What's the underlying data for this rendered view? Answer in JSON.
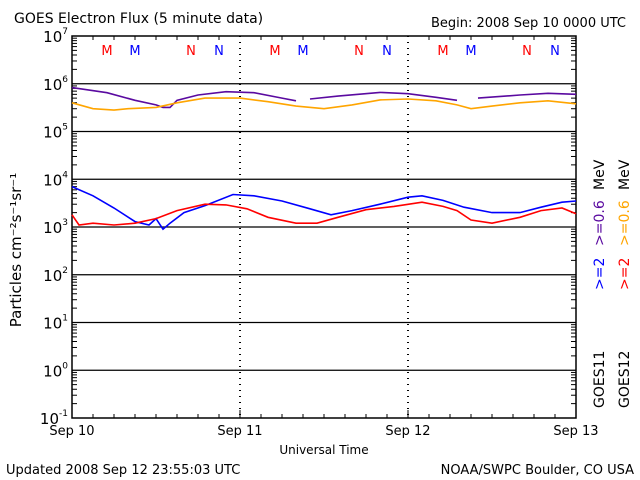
{
  "chart_data": {
    "type": "line",
    "title": "GOES Electron Flux (5 minute data)",
    "begin_label": "Begin: 2008 Sep 10 0000 UTC",
    "xlabel": "Universal Time",
    "ylabel": "Particles cm⁻²s⁻¹sr⁻¹",
    "x_unit": "hours since begin",
    "xlim": [
      0,
      72
    ],
    "x_ticks": [
      {
        "h": 0,
        "label": "Sep 10"
      },
      {
        "h": 24,
        "label": "Sep 11"
      },
      {
        "h": 48,
        "label": "Sep 12"
      },
      {
        "h": 72,
        "label": "Sep 13"
      }
    ],
    "yscale": "log",
    "ylim": [
      0.1,
      10000000
    ],
    "y_ticks": [
      {
        "e": 7,
        "label": "10",
        "sup": "7"
      },
      {
        "e": 6,
        "label": "10",
        "sup": "6"
      },
      {
        "e": 5,
        "label": "10",
        "sup": "5"
      },
      {
        "e": 4,
        "label": "10",
        "sup": "4"
      },
      {
        "e": 3,
        "label": "10",
        "sup": "3"
      },
      {
        "e": 2,
        "label": "10",
        "sup": "2"
      },
      {
        "e": 1,
        "label": "10",
        "sup": "1"
      },
      {
        "e": 0,
        "label": "10",
        "sup": "0"
      },
      {
        "e": -1,
        "label": "10",
        "sup": "-1"
      }
    ],
    "threshold": 1000,
    "markers": [
      {
        "h": 5,
        "label": "M",
        "color": "#ff0000"
      },
      {
        "h": 9,
        "label": "M",
        "color": "#0000ff"
      },
      {
        "h": 17,
        "label": "N",
        "color": "#ff0000"
      },
      {
        "h": 21,
        "label": "N",
        "color": "#0000ff"
      },
      {
        "h": 29,
        "label": "M",
        "color": "#ff0000"
      },
      {
        "h": 33,
        "label": "M",
        "color": "#0000ff"
      },
      {
        "h": 41,
        "label": "N",
        "color": "#ff0000"
      },
      {
        "h": 45,
        "label": "N",
        "color": "#0000ff"
      },
      {
        "h": 53,
        "label": "M",
        "color": "#ff0000"
      },
      {
        "h": 57,
        "label": "M",
        "color": "#0000ff"
      },
      {
        "h": 65,
        "label": "N",
        "color": "#ff0000"
      },
      {
        "h": 69,
        "label": "N",
        "color": "#0000ff"
      }
    ],
    "series": [
      {
        "name": "GOES11 >=0.6 MeV",
        "color": "#5a0aa0",
        "points": [
          [
            0,
            830000
          ],
          [
            5,
            650000
          ],
          [
            9,
            450000
          ],
          [
            12,
            360000
          ],
          [
            13,
            320000
          ],
          [
            14,
            320000
          ],
          [
            15,
            450000
          ],
          [
            18,
            580000
          ],
          [
            22,
            680000
          ],
          [
            26,
            650000
          ],
          [
            30,
            500000
          ],
          [
            32,
            440000
          ],
          null,
          [
            34,
            480000
          ],
          [
            38,
            550000
          ],
          [
            44,
            660000
          ],
          [
            48,
            620000
          ],
          [
            52,
            520000
          ],
          [
            55,
            450000
          ],
          null,
          [
            58,
            500000
          ],
          [
            64,
            580000
          ],
          [
            68,
            630000
          ],
          [
            72,
            600000
          ]
        ]
      },
      {
        "name": "GOES12 >=0.6 MeV",
        "color": "#ffa500",
        "points": [
          [
            0,
            400000
          ],
          [
            3,
            300000
          ],
          [
            6,
            280000
          ],
          [
            8,
            300000
          ],
          [
            12,
            320000
          ],
          [
            15,
            400000
          ],
          [
            19,
            500000
          ],
          [
            24,
            500000
          ],
          [
            28,
            420000
          ],
          [
            32,
            340000
          ],
          [
            36,
            300000
          ],
          [
            40,
            360000
          ],
          [
            44,
            460000
          ],
          [
            48,
            480000
          ],
          [
            52,
            440000
          ],
          [
            55,
            360000
          ],
          [
            57,
            300000
          ],
          [
            60,
            340000
          ],
          [
            64,
            400000
          ],
          [
            68,
            440000
          ],
          [
            72,
            380000
          ]
        ]
      },
      {
        "name": "GOES11 >=2 MeV",
        "color": "#0000ff",
        "points": [
          [
            0,
            7000
          ],
          [
            3,
            4500
          ],
          [
            6,
            2500
          ],
          [
            9,
            1300
          ],
          [
            11,
            1100
          ],
          [
            12,
            1500
          ],
          [
            13,
            900
          ],
          [
            14,
            1200
          ],
          [
            16,
            2000
          ],
          [
            19,
            2800
          ],
          [
            23,
            4800
          ],
          [
            26,
            4500
          ],
          [
            30,
            3500
          ],
          [
            34,
            2400
          ],
          [
            37,
            1800
          ],
          [
            40,
            2200
          ],
          [
            44,
            3000
          ],
          [
            48,
            4200
          ],
          [
            50,
            4500
          ],
          [
            53,
            3600
          ],
          [
            56,
            2600
          ],
          [
            60,
            2000
          ],
          [
            64,
            2000
          ],
          [
            67,
            2600
          ],
          [
            70,
            3300
          ],
          [
            72,
            3500
          ]
        ]
      },
      {
        "name": "GOES12 >=2 MeV",
        "color": "#ff0000",
        "points": [
          [
            0,
            1800
          ],
          [
            1,
            1100
          ],
          [
            3,
            1200
          ],
          [
            6,
            1100
          ],
          [
            9,
            1200
          ],
          [
            12,
            1500
          ],
          [
            15,
            2200
          ],
          [
            19,
            3000
          ],
          [
            22,
            2900
          ],
          [
            25,
            2400
          ],
          [
            28,
            1600
          ],
          [
            32,
            1200
          ],
          [
            35,
            1200
          ],
          [
            38,
            1600
          ],
          [
            42,
            2300
          ],
          [
            46,
            2700
          ],
          [
            50,
            3300
          ],
          [
            53,
            2700
          ],
          [
            55,
            2200
          ],
          [
            57,
            1400
          ],
          [
            60,
            1200
          ],
          [
            64,
            1600
          ],
          [
            67,
            2200
          ],
          [
            70,
            2500
          ],
          [
            72,
            1900
          ]
        ]
      }
    ],
    "legend": {
      "goes11": {
        "sat": "GOES11",
        "e1": ">=2",
        "e2": ">=0.6",
        "unit": "MeV",
        "c1": "#0000ff",
        "c2": "#5a0aa0"
      },
      "goes12": {
        "sat": "GOES12",
        "e1": ">=2",
        "e2": ">=0.6",
        "unit": "MeV",
        "c1": "#ff0000",
        "c2": "#ffa500"
      }
    }
  },
  "footer": {
    "updated": "Updated 2008 Sep 12 23:55:03 UTC",
    "credit": "NOAA/SWPC Boulder, CO USA"
  }
}
